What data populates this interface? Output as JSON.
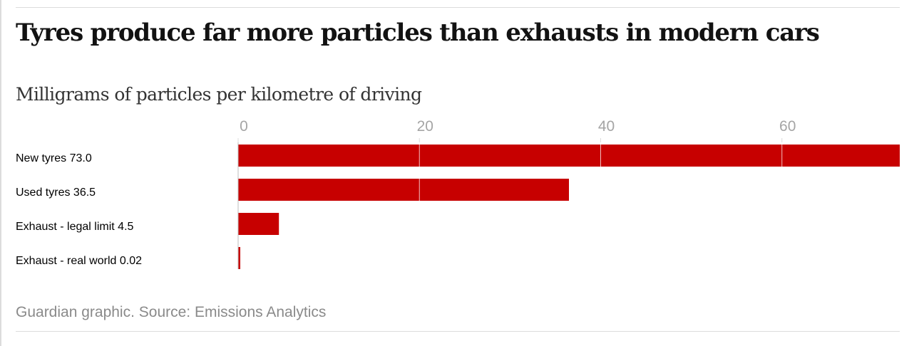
{
  "chart_data": {
    "type": "bar",
    "orientation": "horizontal",
    "title": "Tyres produce far more particles than exhausts in modern cars",
    "subtitle": "Milligrams of particles per kilometre of driving",
    "categories": [
      "New tyres",
      "Used tyres",
      "Exhaust - legal limit",
      "Exhaust - real world"
    ],
    "values": [
      73.0,
      36.5,
      4.5,
      0.02
    ],
    "value_labels": [
      "73.0",
      "36.5",
      "4.5",
      "0.02"
    ],
    "xticks": [
      0,
      20,
      40,
      60
    ],
    "xlim": [
      0,
      73
    ],
    "grid": true,
    "bar_color": "#c70000",
    "source": "Guardian graphic. Source: Emissions Analytics"
  }
}
